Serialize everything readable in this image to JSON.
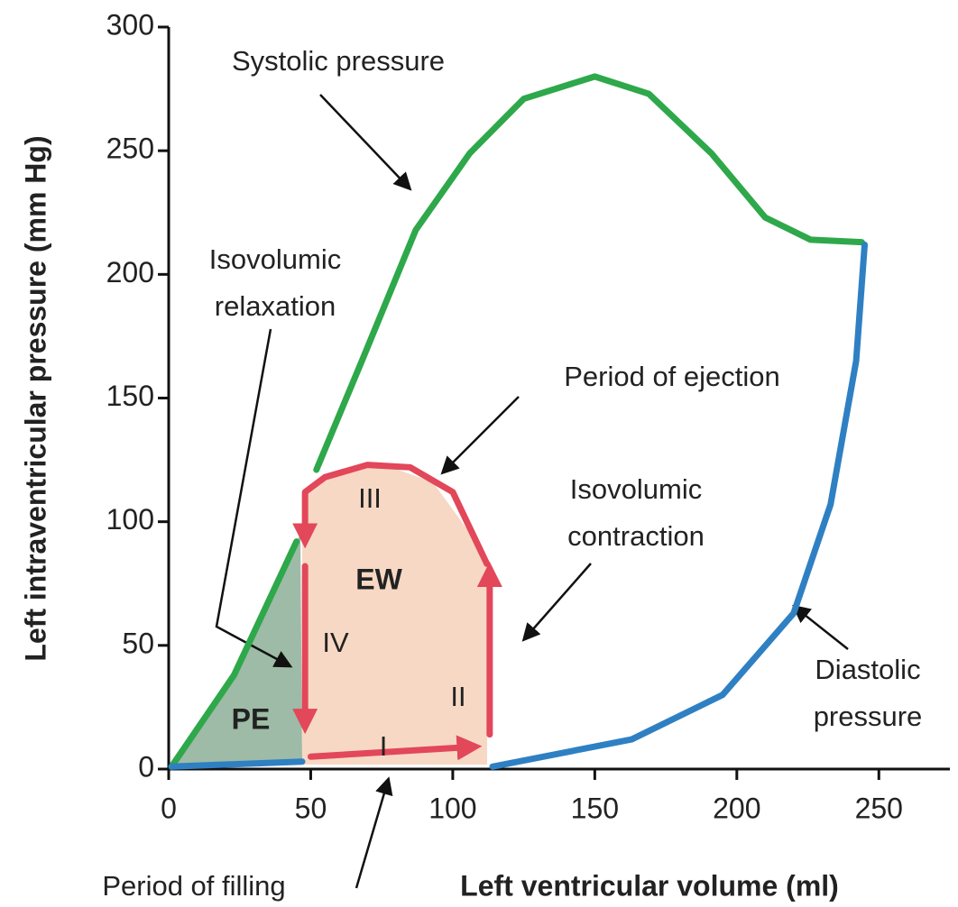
{
  "chart_data": {
    "type": "line",
    "xlabel": "Left ventricular volume (ml)",
    "ylabel": "Left intraventricular pressure (mm Hg)",
    "xlim": [
      0,
      275
    ],
    "ylim": [
      0,
      300
    ],
    "xticks": [
      0,
      50,
      100,
      150,
      200,
      250
    ],
    "yticks": [
      0,
      50,
      100,
      150,
      200,
      250,
      300
    ],
    "series": [
      {
        "color": "#2ea84a",
        "x": [
          1,
          23,
          45,
          null,
          52,
          68,
          87,
          106,
          125,
          150,
          169,
          191,
          210,
          226,
          244
        ],
        "values": [
          1,
          38,
          92,
          null,
          121,
          165,
          218,
          249,
          271,
          280,
          273,
          249,
          223,
          214,
          213
        ]
      },
      {
        "color": "#2f80c3",
        "x": [
          1,
          47,
          null,
          114,
          163,
          195,
          220,
          233,
          242,
          245
        ],
        "values": [
          1,
          3,
          null,
          1,
          12,
          30,
          63,
          107,
          165,
          212
        ]
      },
      {
        "color": "#e2475a",
        "x": [
          112,
          100,
          85,
          70,
          55,
          48,
          48,
          null,
          48,
          48,
          null,
          50,
          107,
          null,
          113,
          113
        ],
        "values": [
          83,
          112,
          122,
          123,
          118,
          112,
          93,
          null,
          82,
          18,
          null,
          5,
          9,
          null,
          14,
          80
        ]
      }
    ],
    "annotations": [
      [
        "Systolic pressure"
      ],
      [
        "Isovolumic",
        "relaxation"
      ],
      [
        "Period of ejection"
      ],
      [
        "Isovolumic",
        "contraction"
      ],
      [
        "Diastolic",
        "pressure"
      ],
      [
        "Period of filling"
      ]
    ],
    "region_labels": [
      "PE",
      "EW"
    ],
    "phase_labels": [
      "I",
      "II",
      "III",
      "IV"
    ]
  }
}
